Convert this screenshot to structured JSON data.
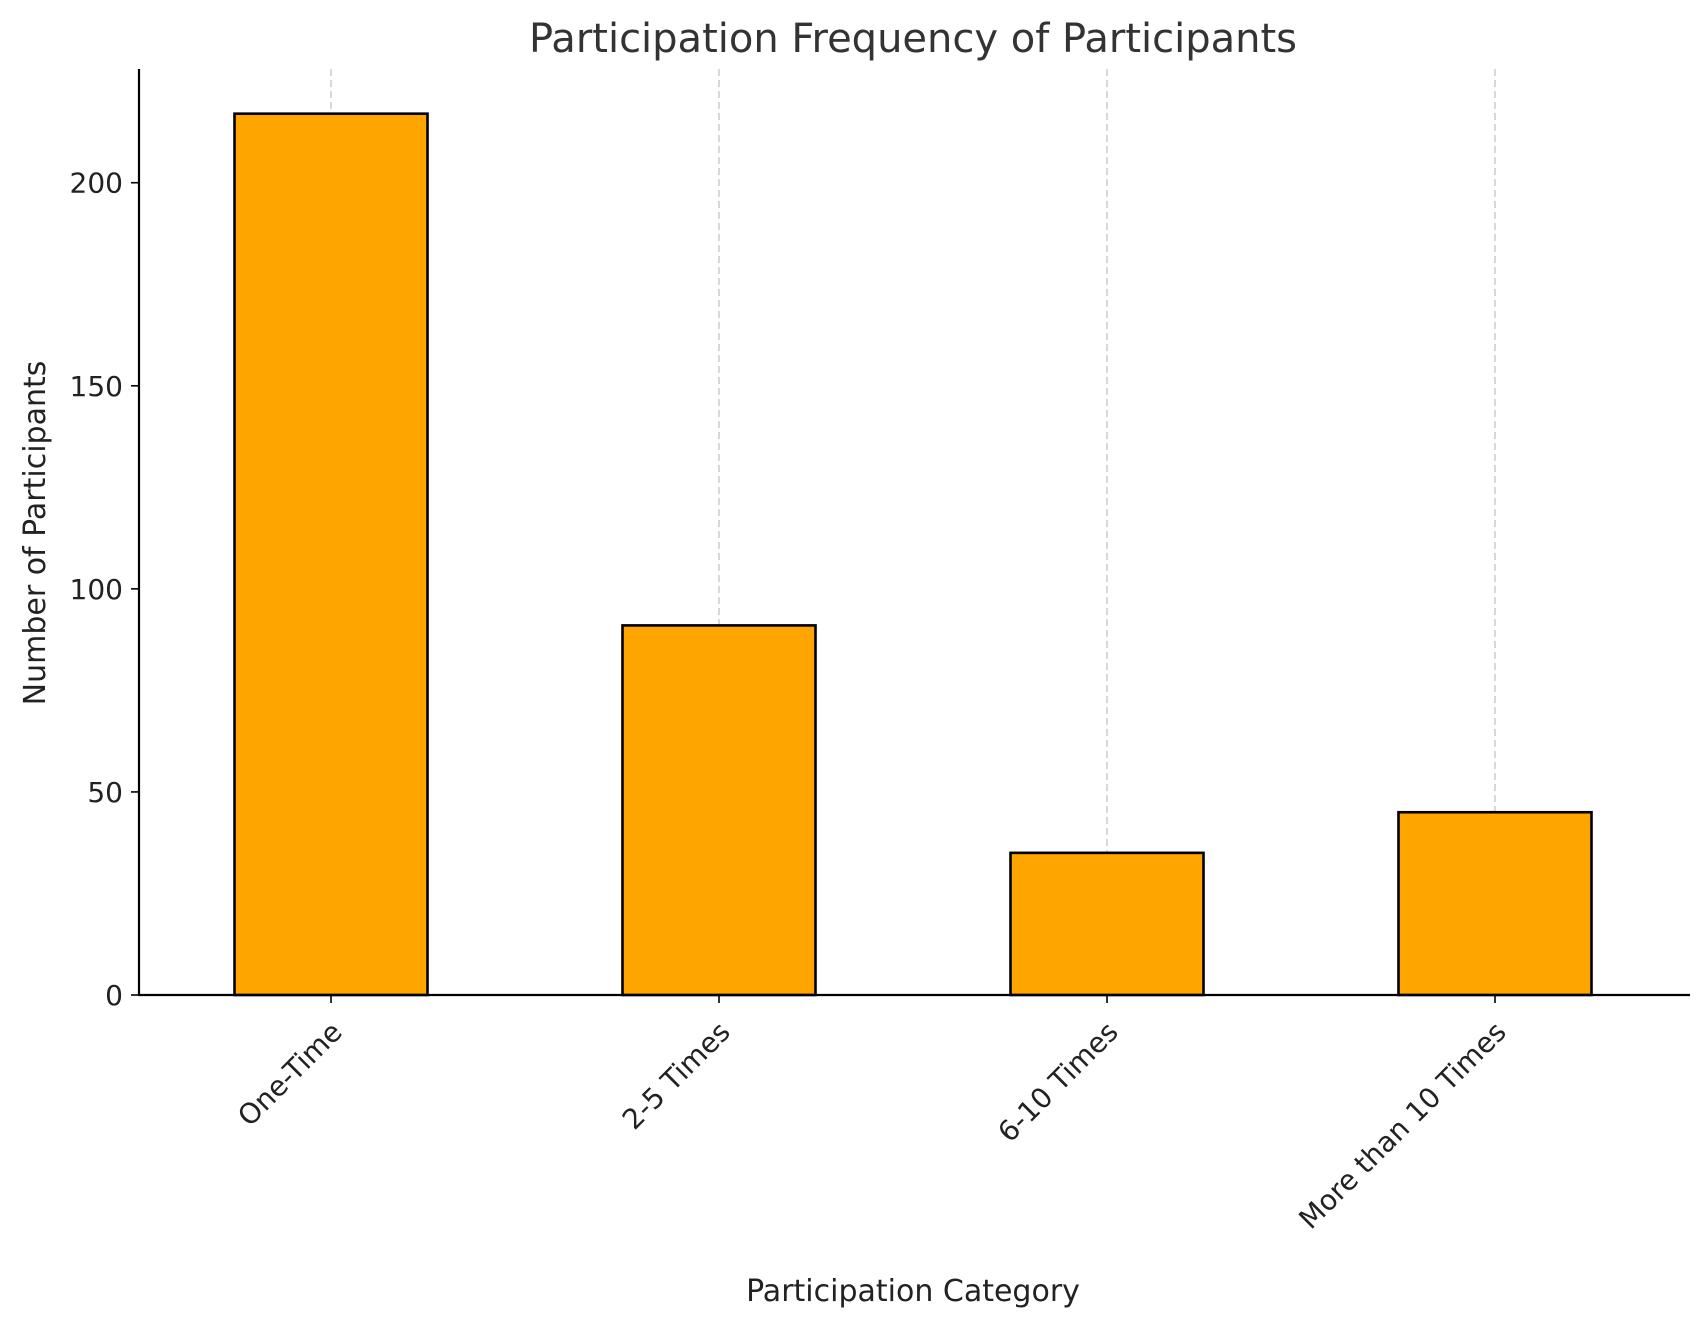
{
  "chart_data": {
    "type": "bar",
    "title": "Participation Frequency of Participants",
    "xlabel": "Participation Category",
    "ylabel": "Number of Participants",
    "categories": [
      "One-Time",
      "2-5 Times",
      "6-10 Times",
      "More than 10 Times"
    ],
    "values": [
      217,
      91,
      35,
      45
    ],
    "ylim": [
      0,
      228
    ],
    "yticks": [
      0,
      50,
      100,
      150,
      200
    ],
    "grid": "vertical dashed",
    "bar_color": "#FFA500",
    "edge_color": "#000000"
  }
}
